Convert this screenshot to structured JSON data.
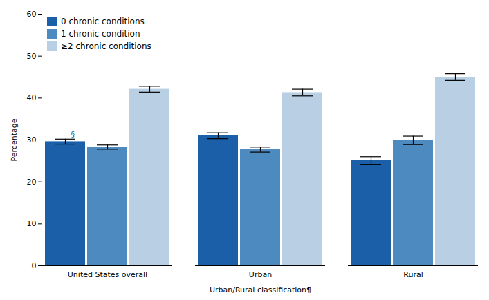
{
  "chart_data": {
    "type": "bar",
    "categories": [
      "United States overall",
      "Urban",
      "Rural"
    ],
    "series": [
      {
        "name": "0 chronic conditions",
        "color": "#1a5fa8",
        "values": [
          29.6,
          31.0,
          25.1
        ],
        "errors": [
          0.6,
          0.7,
          0.9
        ]
      },
      {
        "name": "1 chronic condition",
        "color": "#4d8abf",
        "values": [
          28.3,
          27.7,
          29.9
        ],
        "errors": [
          0.5,
          0.6,
          1.0
        ]
      },
      {
        "name": "≥2 chronic conditions",
        "color": "#b8cfe4",
        "values": [
          42.1,
          41.3,
          45.0
        ],
        "errors": [
          0.7,
          0.8,
          0.8
        ]
      }
    ],
    "xlabel": "Urban/Rural classification¶",
    "ylabel": "Percentage",
    "ylim": [
      0,
      60
    ],
    "yticks": [
      0,
      10,
      20,
      30,
      40,
      50,
      60
    ],
    "grid": false,
    "legend": "upper left",
    "annotations": [
      {
        "text": "§",
        "color": "#1a5fa8",
        "category": "United States overall",
        "series": "0 chronic conditions"
      }
    ]
  }
}
